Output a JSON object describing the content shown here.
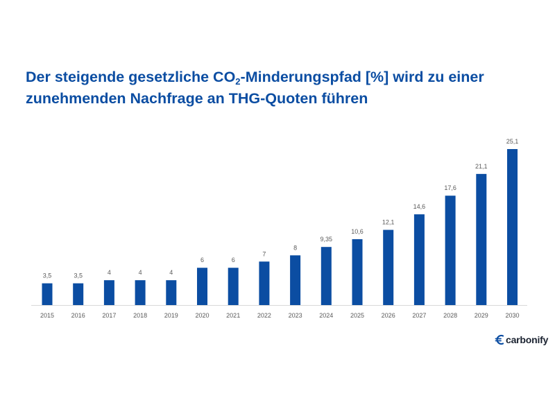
{
  "title": {
    "part1": "Der steigende gesetzliche CO",
    "subscript": "2",
    "part2": "-Minderungspfad [%] wird zu einer zunehmenden Nachfrage an THG-Quoten führen"
  },
  "logo": {
    "text": "carbonify",
    "icon": "euro-sign-icon"
  },
  "colors": {
    "bar": "#0b4da2",
    "title": "#0b4da2",
    "axis": "#d9d9d9",
    "label": "#595959"
  },
  "chart_data": {
    "type": "bar",
    "categories": [
      "2015",
      "2016",
      "2017",
      "2018",
      "2019",
      "2020",
      "2021",
      "2022",
      "2023",
      "2024",
      "2025",
      "2026",
      "2027",
      "2028",
      "2029",
      "2030"
    ],
    "values": [
      3.5,
      3.5,
      4,
      4,
      4,
      6,
      6,
      7,
      8,
      9.35,
      10.6,
      12.1,
      14.6,
      17.6,
      21.1,
      25.1
    ],
    "data_labels": [
      "3,5",
      "3,5",
      "4",
      "4",
      "4",
      "6",
      "6",
      "7",
      "8",
      "9,35",
      "10,6",
      "12,1",
      "14,6",
      "17,6",
      "21,1",
      "25,1"
    ],
    "ylim": [
      0,
      25.1
    ],
    "grid": false,
    "legend": "none"
  }
}
